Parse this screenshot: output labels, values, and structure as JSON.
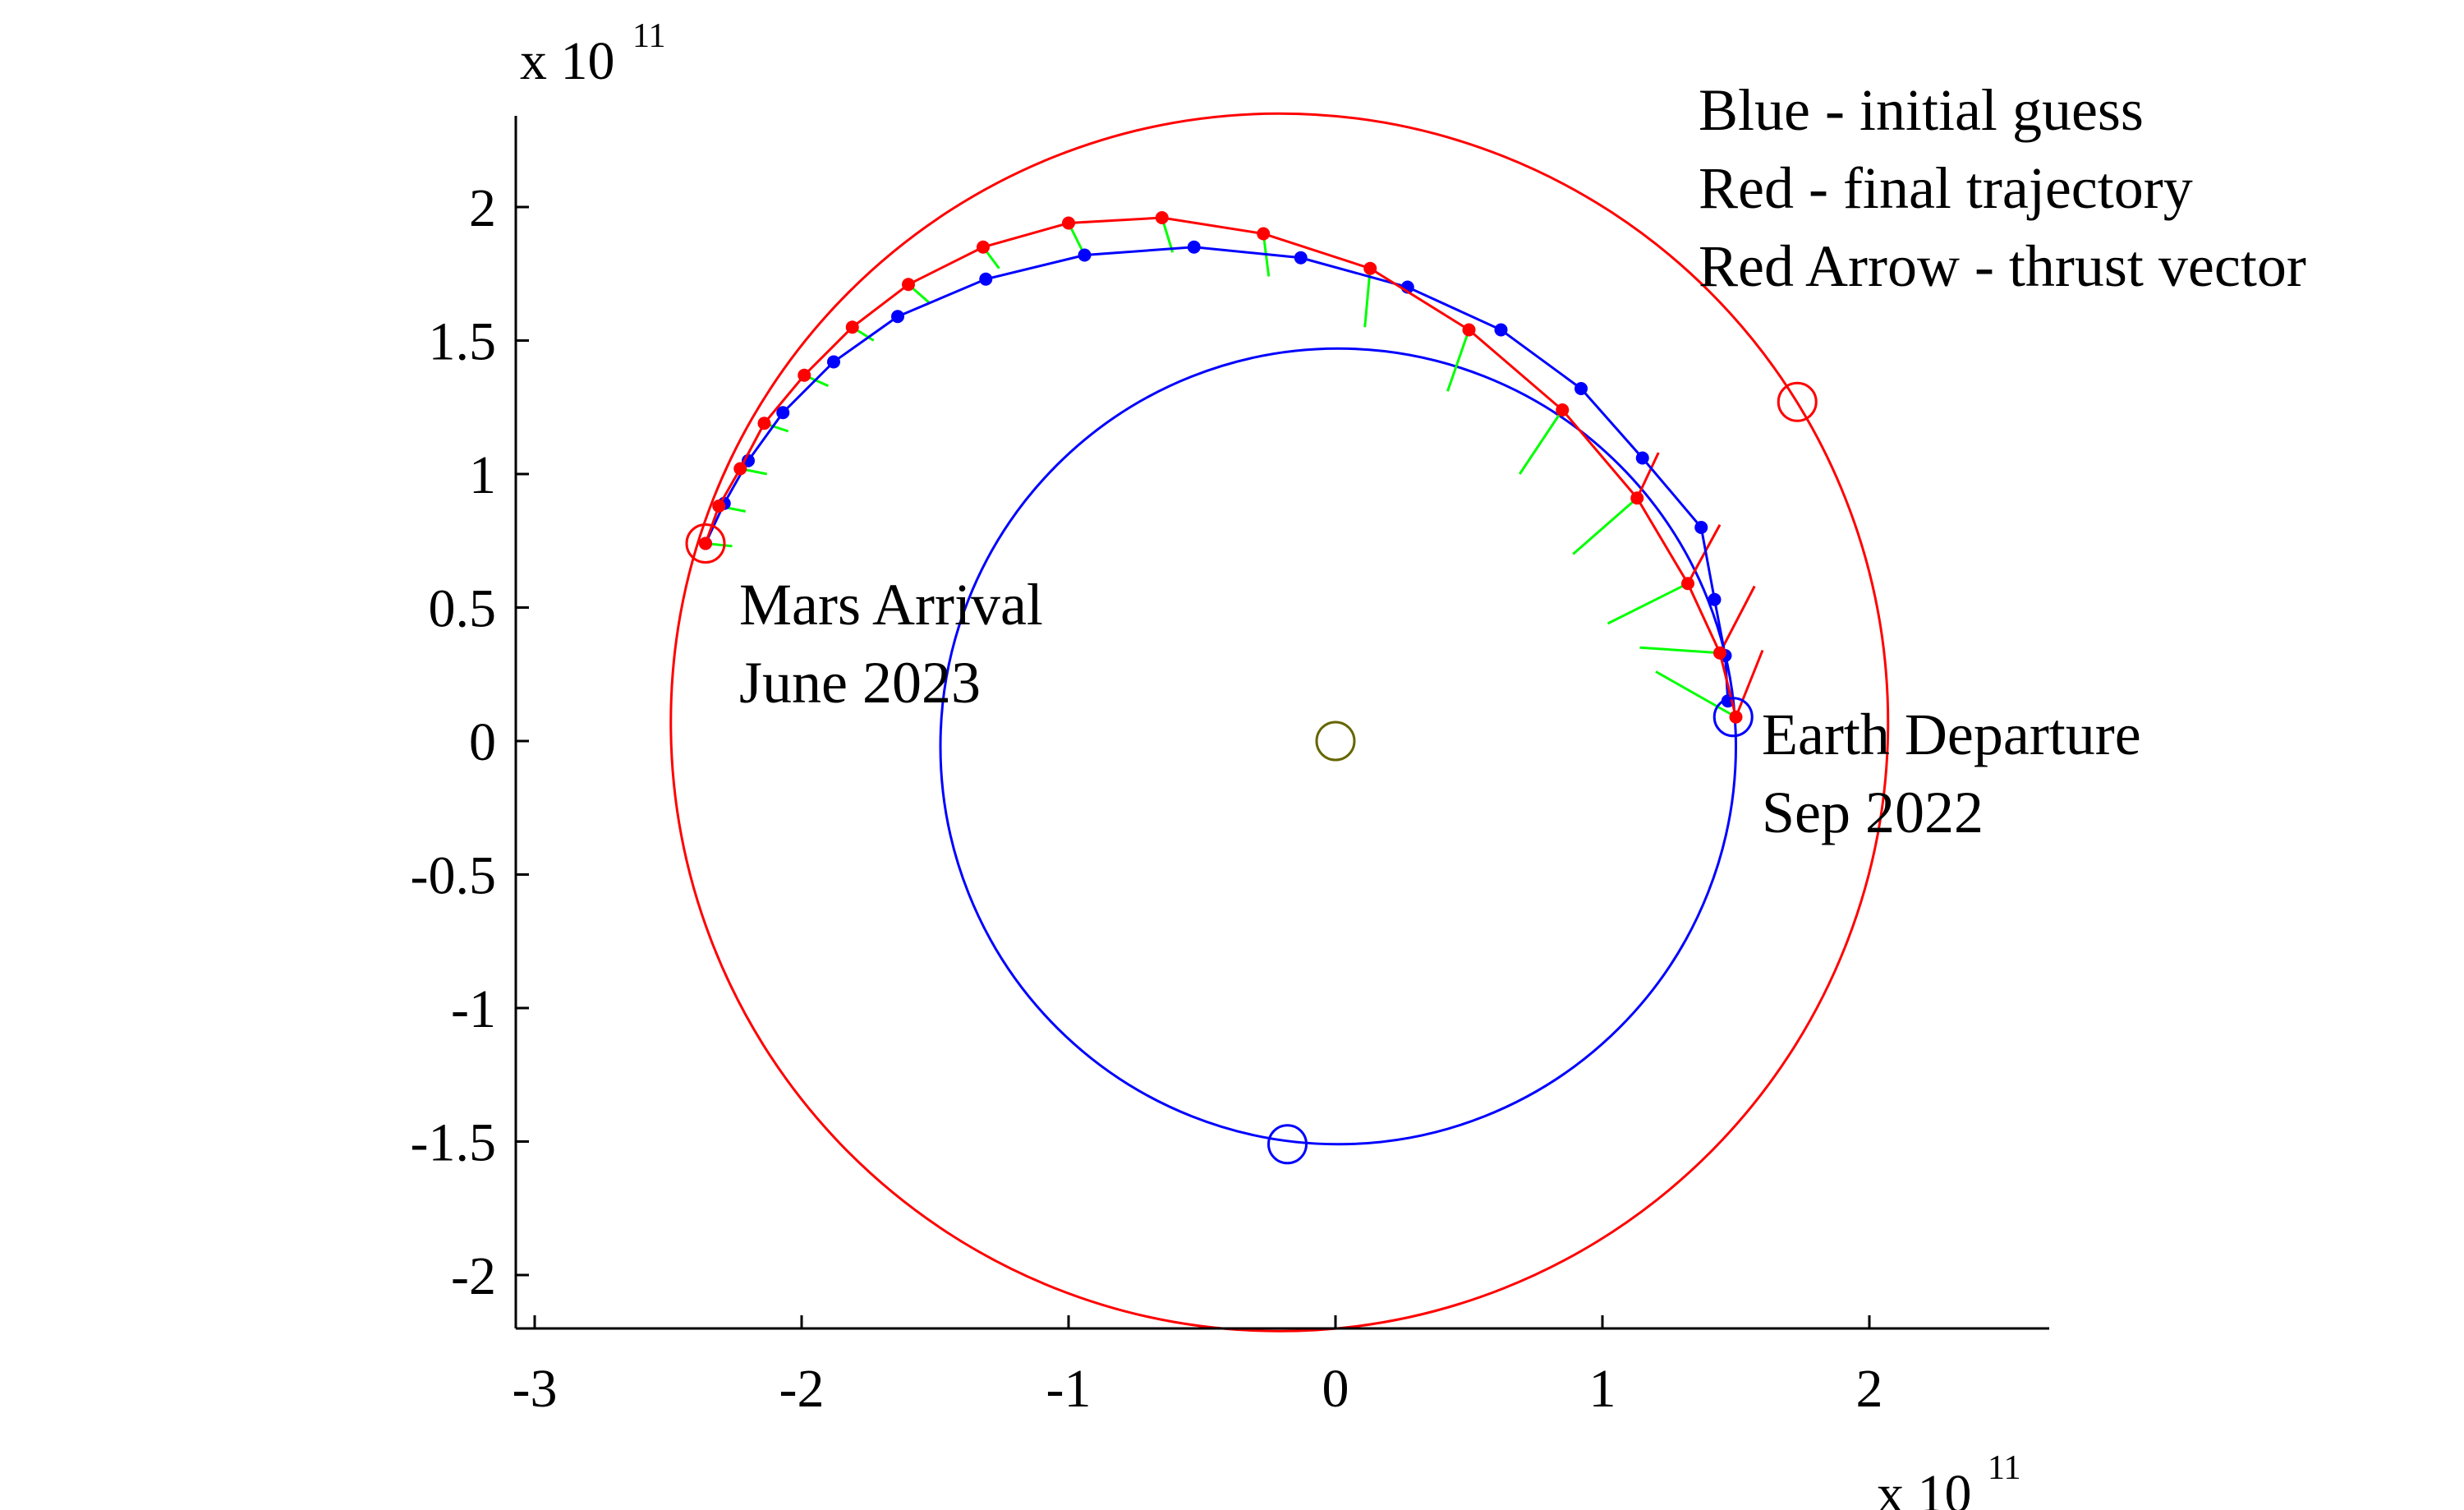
{
  "chart_data": {
    "type": "scatter",
    "title": "",
    "xlabel": "",
    "ylabel": "",
    "x_multiplier": {
      "base": "x 10",
      "exponent": "11"
    },
    "y_multiplier": {
      "base": "x 10",
      "exponent": "11"
    },
    "xlim": [
      -3.08,
      2.67
    ],
    "ylim": [
      -2.2,
      2.35
    ],
    "xticks": [
      -3,
      -2,
      -1,
      0,
      1,
      2
    ],
    "xtick_labels": [
      "-3",
      "-2",
      "-1",
      "0",
      "1",
      "2"
    ],
    "yticks": [
      -2,
      -1.5,
      -1,
      -0.5,
      0,
      0.5,
      1,
      1.5,
      2
    ],
    "ytick_labels": [
      "-2",
      "-1.5",
      "-1",
      "-0.5",
      "0",
      "0.5",
      "1",
      "1.5",
      "2"
    ],
    "grid": false,
    "colors": {
      "initial": "#0000ff",
      "final": "#ff0000",
      "thrust": "#00ff00",
      "sun": "#666600"
    },
    "legend_text": [
      "Blue - initial guess",
      "Red - final trajectory",
      "Red Arrow - thrust vector"
    ],
    "annotations": [
      {
        "lines": [
          "Mars Arrival",
          "June 2023"
        ],
        "x": -2.0,
        "y": 0.52
      },
      {
        "lines": [
          "Earth Departure",
          "Sep 2022"
        ],
        "x": 1.6,
        "y": 0.0
      }
    ],
    "orbits": [
      {
        "name": "Earth orbit",
        "color": "#0000ff",
        "cx": 0.01,
        "cy": -0.02,
        "r": 1.49
      },
      {
        "name": "Mars orbit",
        "color": "#ff0000",
        "cx": -0.21,
        "cy": 0.07,
        "r": 2.28
      }
    ],
    "markers": [
      {
        "name": "sun",
        "x": 0.0,
        "y": 0.0,
        "color": "#666600"
      },
      {
        "name": "earth-departure",
        "x": 1.49,
        "y": 0.09,
        "color": "#0000ff"
      },
      {
        "name": "earth-at-arrival",
        "x": -0.18,
        "y": -1.51,
        "color": "#0000ff"
      },
      {
        "name": "mars-arrival",
        "x": -2.36,
        "y": 0.74,
        "color": "#ff0000"
      },
      {
        "name": "mars-at-departure",
        "x": 1.73,
        "y": 1.27,
        "color": "#ff0000"
      }
    ],
    "series": [
      {
        "color": "#0000ff",
        "x": [
          1.47,
          1.46,
          1.42,
          1.37,
          1.15,
          0.92,
          0.62,
          0.27,
          -0.13,
          -0.53,
          -0.94,
          -1.31,
          -1.64,
          -1.88,
          -2.07,
          -2.2,
          -2.29,
          -2.36
        ],
        "y": [
          0.15,
          0.32,
          0.53,
          0.8,
          1.06,
          1.32,
          1.54,
          1.7,
          1.81,
          1.85,
          1.82,
          1.73,
          1.59,
          1.42,
          1.23,
          1.05,
          0.89,
          0.74
        ]
      },
      {
        "color": "#ff0000",
        "x": [
          1.5,
          1.44,
          1.32,
          1.13,
          0.85,
          0.5,
          0.13,
          -0.27,
          -0.65,
          -1.0,
          -1.32,
          -1.6,
          -1.81,
          -1.99,
          -2.14,
          -2.23,
          -2.31,
          -2.36
        ],
        "y": [
          0.09,
          0.33,
          0.59,
          0.91,
          1.24,
          1.54,
          1.77,
          1.9,
          1.96,
          1.94,
          1.85,
          1.71,
          1.55,
          1.37,
          1.19,
          1.02,
          0.88,
          0.74
        ]
      }
    ],
    "thrust_vectors": [
      {
        "x": 1.5,
        "y": 0.09,
        "dx": -0.3,
        "dy": 0.17
      },
      {
        "x": 1.44,
        "y": 0.33,
        "dx": -0.3,
        "dy": 0.02
      },
      {
        "x": 1.32,
        "y": 0.59,
        "dx": -0.3,
        "dy": -0.15
      },
      {
        "x": 1.13,
        "y": 0.91,
        "dx": -0.24,
        "dy": -0.21
      },
      {
        "x": 0.85,
        "y": 1.24,
        "dx": -0.16,
        "dy": -0.24
      },
      {
        "x": 0.5,
        "y": 1.54,
        "dx": -0.08,
        "dy": -0.23
      },
      {
        "x": 0.13,
        "y": 1.77,
        "dx": -0.02,
        "dy": -0.22
      },
      {
        "x": -0.27,
        "y": 1.9,
        "dx": 0.02,
        "dy": -0.16
      },
      {
        "x": -0.65,
        "y": 1.96,
        "dx": 0.04,
        "dy": -0.13
      },
      {
        "x": -1.0,
        "y": 1.94,
        "dx": 0.05,
        "dy": -0.1
      },
      {
        "x": -1.32,
        "y": 1.85,
        "dx": 0.06,
        "dy": -0.08
      },
      {
        "x": -1.6,
        "y": 1.71,
        "dx": 0.08,
        "dy": -0.07
      },
      {
        "x": -1.81,
        "y": 1.55,
        "dx": 0.08,
        "dy": -0.05
      },
      {
        "x": -1.99,
        "y": 1.37,
        "dx": 0.09,
        "dy": -0.04
      },
      {
        "x": -2.14,
        "y": 1.19,
        "dx": 0.09,
        "dy": -0.03
      },
      {
        "x": -2.23,
        "y": 1.02,
        "dx": 0.1,
        "dy": -0.02
      },
      {
        "x": -2.31,
        "y": 0.88,
        "dx": 0.1,
        "dy": -0.02
      },
      {
        "x": -2.36,
        "y": 0.74,
        "dx": 0.1,
        "dy": -0.01
      }
    ],
    "thrust_arrows": [
      {
        "x": 1.5,
        "y": 0.09,
        "dx": 0.1,
        "dy": 0.25
      },
      {
        "x": 1.44,
        "y": 0.33,
        "dx": 0.13,
        "dy": 0.25
      },
      {
        "x": 1.32,
        "y": 0.59,
        "dx": 0.12,
        "dy": 0.22
      },
      {
        "x": 1.13,
        "y": 0.91,
        "dx": 0.08,
        "dy": 0.17
      }
    ]
  }
}
